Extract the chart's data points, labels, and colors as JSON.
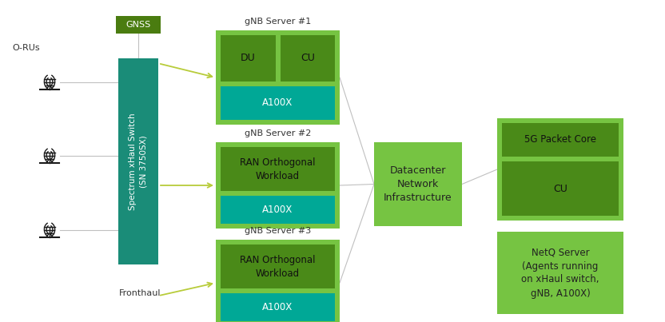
{
  "bg_color": "#ffffff",
  "gnss_label": "GNSS",
  "gnss_color": "#4a7c10",
  "gnss_text_color": "#ffffff",
  "orus_label": "O-RUs",
  "fronthaul_label": "Fronthaul",
  "switch_label": "Spectrum xHaul Switch\n(SN 3750SX)",
  "switch_color": "#1a8c78",
  "switch_text_color": "#ffffff",
  "gnb1_title": "gNB Server #1",
  "gnb2_title": "gNB Server #2",
  "gnb3_title": "gNB Server #3",
  "gnb_outer_color": "#76c442",
  "gnb_inner_color": "#4a8a18",
  "a100x_color": "#00a896",
  "a100x_text_color": "#ffffff",
  "du_label": "DU",
  "cu_label": "CU",
  "ran_label": "RAN Orthogonal\nWorkload",
  "a100x_label": "A100X",
  "dc_label": "Datacenter\nNetwork\nInfrastructure",
  "dc_color": "#76c442",
  "dc_text_color": "#222222",
  "packet_core_label": "5G Packet Core",
  "cu_right_label": "CU",
  "right_outer_color": "#76c442",
  "right_inner_color": "#4a8a18",
  "netq_label": "NetQ Server\n(Agents running\non xHaul switch,\ngNB, A100X)",
  "netq_color": "#76c442",
  "netq_text_color": "#222222",
  "arrow_color": "#b8cc3a",
  "line_color": "#c0c0c0",
  "text_color": "#333333"
}
